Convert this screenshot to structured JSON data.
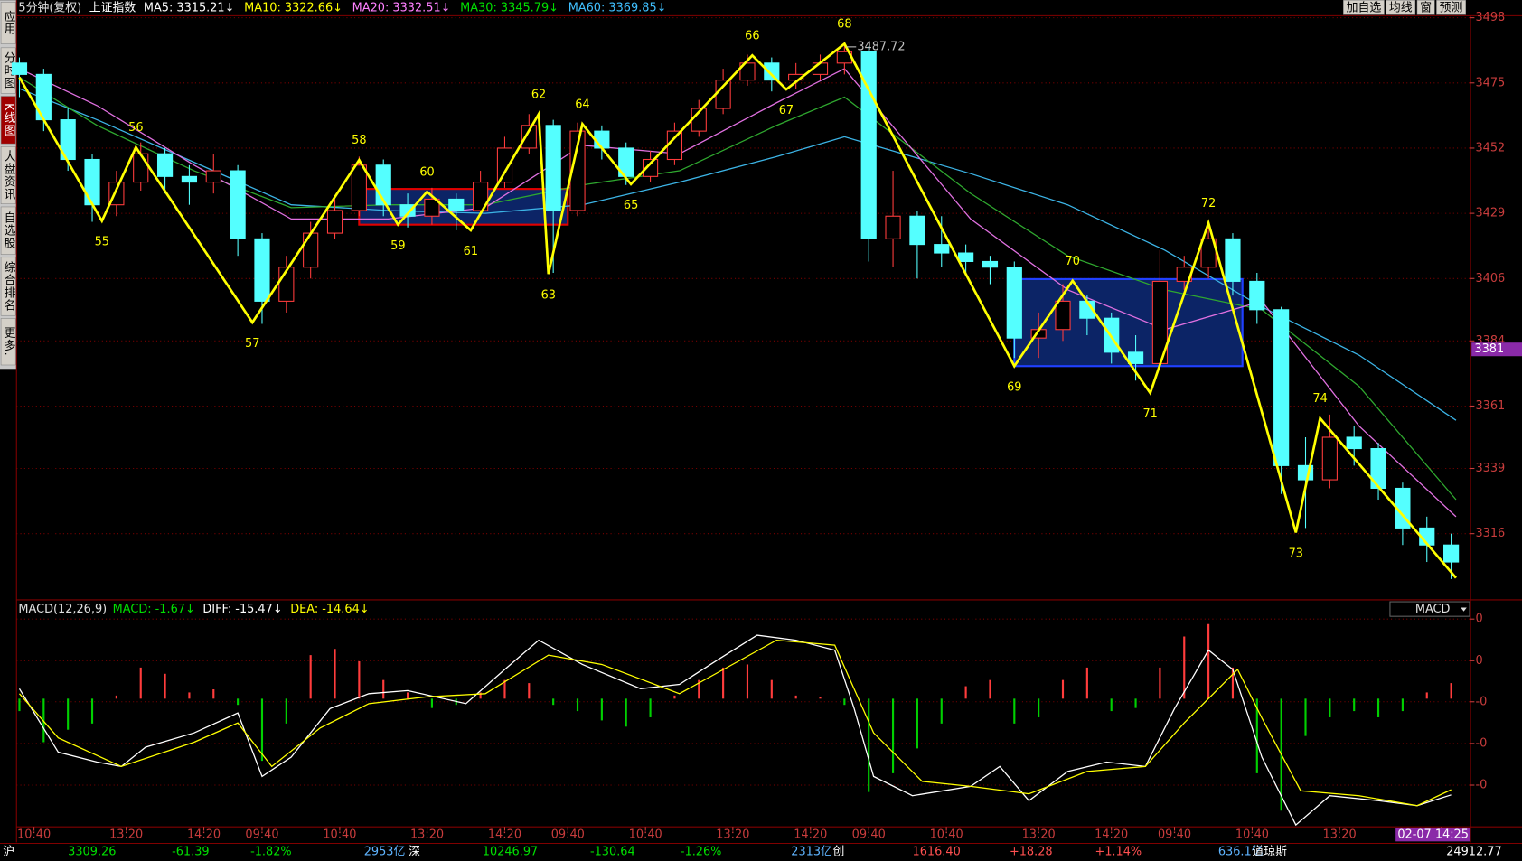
{
  "header": {
    "period": "5分钟(复权)",
    "name": "上证指数",
    "indicators": [
      {
        "text": "MA5: 3315.21↓",
        "color": "#ffffff"
      },
      {
        "text": "MA10: 3322.66↓",
        "color": "#ffff00"
      },
      {
        "text": "MA20: 3332.51↓",
        "color": "#ff80ff"
      },
      {
        "text": "MA30: 3345.79↓",
        "color": "#00e000"
      },
      {
        "text": "MA60: 3369.85↓",
        "color": "#40c0ff"
      }
    ]
  },
  "toolbar": [
    "加自选",
    "均线",
    "窗",
    "预测"
  ],
  "sidebar": {
    "tabs": [
      "应用",
      "分时图",
      "K线图",
      "大盘资讯",
      "自选股",
      "综合排名",
      "更多."
    ],
    "active": 2
  },
  "chart_data": [
    {
      "type": "candlestick",
      "xlim": [
        0,
        299
      ],
      "ylim": [
        3293,
        3499.4
      ],
      "yticks": [
        3498,
        3475,
        3452,
        3429,
        3406,
        3384,
        3361,
        3339,
        3316
      ],
      "grid": true,
      "up_color": "#ff3c3c",
      "down_color": "#54ffff",
      "x": [
        0,
        5,
        10,
        15,
        20,
        25,
        30,
        35,
        40,
        45,
        50,
        55,
        60,
        65,
        70,
        75,
        80,
        85,
        90,
        95,
        100,
        105,
        110,
        115,
        120,
        125,
        130,
        135,
        140,
        145,
        150,
        155,
        160,
        165,
        170,
        175,
        180,
        185,
        190,
        195,
        200,
        205,
        210,
        215,
        220,
        225,
        230,
        235,
        240,
        245,
        250,
        255,
        260,
        265,
        270,
        275,
        280,
        285,
        290,
        295
      ],
      "open": [
        3482,
        3478,
        3462,
        3448,
        3432,
        3440,
        3450,
        3442,
        3440,
        3444,
        3420,
        3398,
        3410,
        3422,
        3430,
        3446,
        3432,
        3428,
        3434,
        3430,
        3440,
        3452,
        3460,
        3430,
        3458,
        3452,
        3442,
        3448,
        3458,
        3466,
        3476,
        3482,
        3476,
        3478,
        3482,
        3486,
        3420,
        3428,
        3418,
        3415,
        3412,
        3410,
        3385,
        3388,
        3398,
        3392,
        3380,
        3376,
        3405,
        3410,
        3420,
        3405,
        3395,
        3340,
        3335,
        3350,
        3346,
        3332,
        3318,
        3312
      ],
      "high": [
        3484,
        3480,
        3466,
        3450,
        3444,
        3454,
        3452,
        3446,
        3450,
        3446,
        3422,
        3414,
        3426,
        3434,
        3449,
        3448,
        3436,
        3438,
        3436,
        3444,
        3456,
        3464,
        3462,
        3461,
        3460,
        3454,
        3451,
        3461,
        3469,
        3480,
        3485,
        3484,
        3482,
        3485,
        3488,
        3488,
        3444,
        3430,
        3428,
        3418,
        3414,
        3412,
        3394,
        3404,
        3400,
        3394,
        3386,
        3416,
        3414,
        3426,
        3422,
        3408,
        3396,
        3350,
        3358,
        3354,
        3348,
        3334,
        3322,
        3316
      ],
      "low": [
        3470,
        3458,
        3444,
        3426,
        3428,
        3437,
        3436,
        3432,
        3436,
        3414,
        3390,
        3394,
        3406,
        3420,
        3428,
        3428,
        3424,
        3425,
        3423,
        3428,
        3438,
        3450,
        3408,
        3428,
        3448,
        3439,
        3440,
        3446,
        3456,
        3464,
        3474,
        3472,
        3473,
        3476,
        3478,
        3412,
        3410,
        3406,
        3410,
        3408,
        3404,
        3378,
        3378,
        3384,
        3386,
        3376,
        3370,
        3374,
        3402,
        3406,
        3400,
        3390,
        3330,
        3318,
        3332,
        3340,
        3328,
        3312,
        3306,
        3300
      ],
      "close": [
        3478,
        3462,
        3448,
        3432,
        3440,
        3450,
        3442,
        3440,
        3444,
        3420,
        3398,
        3410,
        3422,
        3430,
        3446,
        3432,
        3428,
        3434,
        3430,
        3440,
        3452,
        3460,
        3430,
        3458,
        3452,
        3442,
        3448,
        3458,
        3466,
        3476,
        3482,
        3476,
        3478,
        3482,
        3486,
        3420,
        3428,
        3418,
        3415,
        3412,
        3410,
        3385,
        3388,
        3398,
        3392,
        3380,
        3376,
        3405,
        3410,
        3420,
        3405,
        3395,
        3340,
        3335,
        3350,
        3346,
        3332,
        3318,
        3312,
        3306
      ],
      "overlays": {
        "x": [
          0,
          16,
          36,
          56,
          76,
          96,
          116,
          136,
          156,
          170,
          196,
          216,
          236,
          256,
          276,
          296
        ],
        "series": [
          {
            "color": "#3cb4e6",
            "values": [
              3473,
              3462,
              3447,
              3432,
              3430,
              3429,
              3432,
              3440,
              3449,
              3456,
              3443,
              3432,
              3416,
              3396,
              3379,
              3356
            ]
          },
          {
            "color": "#2fa82f",
            "values": [
              3477,
              3460,
              3444,
              3431,
              3432,
              3432,
              3439,
              3444,
              3460,
              3470,
              3436,
              3414,
              3402,
              3395,
              3368,
              3328
            ]
          },
          {
            "color": "#e070e0",
            "values": [
              3480,
              3467,
              3446,
              3427,
              3427,
              3431,
              3453,
              3450,
              3468,
              3480,
              3427,
              3402,
              3388,
              3398,
              3354,
              3322
            ]
          }
        ]
      },
      "zones": [
        {
          "start": 70,
          "end": 113,
          "low": 3425,
          "high": 3437.6,
          "border": "#e00000",
          "fill": "#0c2466"
        },
        {
          "start": 205,
          "end": 252,
          "low": 3375.1,
          "high": 3405.8,
          "border": "#2040ff",
          "fill": "#0c2466"
        }
      ],
      "zigzag": {
        "color": "#ffff00",
        "x": [
          0,
          17,
          24,
          48,
          70,
          78,
          84,
          93,
          107,
          109,
          116,
          126,
          151,
          158,
          170,
          205,
          217,
          233,
          245,
          263,
          268,
          296
        ],
        "values": [
          3477,
          3426.3,
          3452.3,
          3390.5,
          3447.8,
          3425,
          3436.6,
          3423,
          3464,
          3407.6,
          3460.5,
          3439.3,
          3484.7,
          3472.7,
          3488.8,
          3375.1,
          3405.2,
          3365.6,
          3425.6,
          3316.4,
          3356.7,
          3300.4
        ],
        "labels": [
          null,
          "55",
          "56",
          "57",
          "58",
          "59",
          "60",
          "61",
          "62",
          "63",
          "64",
          "65",
          "66",
          "67",
          "68",
          "69",
          "70",
          "71",
          "72",
          "73",
          "74",
          null
        ]
      },
      "peak": {
        "x": 170,
        "value": 3487.72
      },
      "cursor": 3381
    },
    {
      "type": "macd",
      "title": "MACD(12,26,9)",
      "indicators": [
        {
          "text": "MACD: -1.67↓",
          "color": "#00e000"
        },
        {
          "text": "DIFF: -15.47↓",
          "color": "#ffffff"
        },
        {
          "text": "DEA: -14.64↓",
          "color": "#ffff00"
        }
      ],
      "selector": "MACD",
      "xlim": [
        0,
        299
      ],
      "ylim": [
        -20.3,
        14.8
      ],
      "yticks": [
        {
          "value": 12.8,
          "label": "0"
        },
        {
          "value": 6.1,
          "label": "0"
        },
        {
          "value": -0.5,
          "label": "-0"
        },
        {
          "value": -7.2,
          "label": "-0"
        },
        {
          "value": -13.9,
          "label": "-0"
        }
      ],
      "xticks": [
        {
          "value": 3,
          "label": "10:40"
        },
        {
          "value": 22,
          "label": "13:20"
        },
        {
          "value": 38,
          "label": "14:20"
        },
        {
          "value": 50,
          "label": "09:40"
        },
        {
          "value": 66,
          "label": "10:40"
        },
        {
          "value": 84,
          "label": "13:20"
        },
        {
          "value": 100,
          "label": "14:20"
        },
        {
          "value": 113,
          "label": "09:40"
        },
        {
          "value": 129,
          "label": "10:40"
        },
        {
          "value": 147,
          "label": "13:20"
        },
        {
          "value": 163,
          "label": "14:20"
        },
        {
          "value": 175,
          "label": "09:40"
        },
        {
          "value": 191,
          "label": "10:40"
        },
        {
          "value": 210,
          "label": "13:20"
        },
        {
          "value": 225,
          "label": "14:20"
        },
        {
          "value": 238,
          "label": "09:40"
        },
        {
          "value": 254,
          "label": "10:40"
        },
        {
          "value": 272,
          "label": "13:20"
        },
        {
          "value": 293,
          "label": "02-07 14:25"
        }
      ],
      "grid": true,
      "bars": {
        "up_color": "#ff3c3c",
        "down_color": "#00d000",
        "x": [
          0,
          5,
          10,
          15,
          20,
          25,
          30,
          35,
          40,
          45,
          50,
          55,
          60,
          65,
          70,
          75,
          80,
          85,
          90,
          95,
          100,
          105,
          110,
          115,
          120,
          125,
          130,
          135,
          140,
          145,
          150,
          155,
          160,
          165,
          170,
          175,
          180,
          185,
          190,
          195,
          200,
          205,
          210,
          215,
          220,
          225,
          230,
          235,
          240,
          245,
          250,
          255,
          260,
          265,
          270,
          275,
          280,
          285,
          290,
          295
        ],
        "values": [
          -2,
          -7,
          -5,
          -4,
          0.5,
          5,
          4,
          1,
          1.5,
          -1,
          -10,
          -4,
          7,
          8,
          6,
          3,
          1,
          -1.5,
          -1,
          1,
          3,
          2.5,
          -1,
          -2,
          -3.5,
          -4.5,
          -3,
          0.5,
          3,
          5,
          5.5,
          3,
          0.5,
          0.3,
          -1,
          -15,
          -12,
          -8,
          -4,
          2,
          3,
          -4,
          -3,
          3,
          5,
          -2,
          -1.5,
          5,
          10,
          12,
          5,
          -12,
          -18,
          -6,
          -3,
          -2,
          -3,
          -2,
          1,
          2.5
        ]
      },
      "series": [
        {
          "color": "#ffffff",
          "x": [
            0,
            8,
            16,
            21,
            26,
            36,
            45,
            50,
            56,
            64,
            72,
            80,
            92,
            100,
            107,
            116,
            128,
            136,
            144,
            152,
            160,
            168,
            172,
            176,
            184,
            196,
            202,
            208,
            216,
            224,
            232,
            238,
            245,
            250,
            256,
            263,
            270,
            280,
            288,
            295
          ],
          "values": [
            1.6,
            -8.6,
            -10.2,
            -10.9,
            -7.8,
            -5.5,
            -2.3,
            -12.5,
            -9.4,
            -1.6,
            0.8,
            1.3,
            -0.8,
            4.7,
            9.4,
            5.5,
            1.6,
            2.3,
            6.3,
            10.2,
            9.4,
            7.8,
            -1.6,
            -12.5,
            -15.6,
            -14.1,
            -10.9,
            -16.4,
            -11.7,
            -10.2,
            -10.9,
            -1.6,
            7.8,
            4.7,
            -9.4,
            -20.3,
            -15.6,
            -16.4,
            -17.2,
            -15.47
          ]
        },
        {
          "color": "#ffff00",
          "x": [
            0,
            8,
            21,
            36,
            45,
            52,
            62,
            72,
            84,
            96,
            109,
            120,
            136,
            156,
            168,
            176,
            186,
            196,
            208,
            220,
            232,
            240,
            251,
            256,
            264,
            276,
            288,
            295
          ],
          "values": [
            0.8,
            -6.3,
            -10.9,
            -7.0,
            -3.9,
            -10.9,
            -4.7,
            -0.8,
            0.3,
            0.8,
            7.0,
            5.5,
            0.8,
            9.4,
            8.6,
            -5.5,
            -13.3,
            -14.1,
            -15.3,
            -11.7,
            -10.9,
            -3.9,
            4.7,
            -3.1,
            -14.8,
            -15.6,
            -17.2,
            -14.64
          ]
        }
      ]
    }
  ],
  "status_bar": [
    {
      "text": "沪",
      "color": "#ffffff"
    },
    {
      "text": "3309.26",
      "color": "#00e000"
    },
    {
      "text": "-61.39",
      "color": "#00e000"
    },
    {
      "text": "-1.82%",
      "color": "#00e000"
    },
    {
      "text": "2953亿",
      "color": "#5fb4ff"
    },
    {
      "text": "深",
      "color": "#ffffff"
    },
    {
      "text": "10246.97",
      "color": "#00e000"
    },
    {
      "text": "-130.64",
      "color": "#00e000"
    },
    {
      "text": "-1.26%",
      "color": "#00e000"
    },
    {
      "text": "2313亿",
      "color": "#5fb4ff"
    },
    {
      "text": "创",
      "color": "#ffffff"
    },
    {
      "text": "1616.40",
      "color": "#ff5050"
    },
    {
      "text": "+18.28",
      "color": "#ff5050"
    },
    {
      "text": "+1.14%",
      "color": "#ff5050"
    },
    {
      "text": "636.1亿",
      "color": "#5fb4ff"
    },
    {
      "text": "道琼斯",
      "color": "#ffffff"
    },
    {
      "text": "24912.77",
      "color": "#ffffff"
    }
  ]
}
